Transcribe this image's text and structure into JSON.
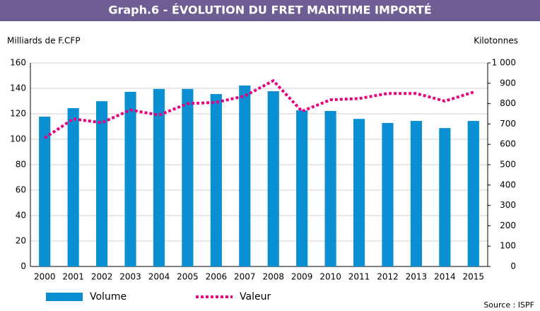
{
  "chart_data": {
    "type": "bar_line",
    "title": "Graph.6 - ÉVOLUTION DU FRET MARITIME IMPORTÉ",
    "y_label": "Milliards de F.CFP",
    "y2_label": "Kilotonnes",
    "source": "Source : ISPF",
    "categories": [
      "2000",
      "2001",
      "2002",
      "2003",
      "2004",
      "2005",
      "2006",
      "2007",
      "2008",
      "2009",
      "2010",
      "2011",
      "2012",
      "2013",
      "2014",
      "2015"
    ],
    "series": [
      {
        "name": "Volume",
        "type": "bar",
        "axis": "y2",
        "color": "#0b8fd3",
        "values": [
          736,
          778,
          812,
          858,
          872,
          872,
          847,
          889,
          861,
          767,
          764,
          725,
          705,
          715,
          680,
          715
        ]
      },
      {
        "name": "Valeur",
        "type": "line",
        "color": "#e4007f",
        "values": [
          101,
          116,
          113,
          123,
          119,
          128,
          129,
          134,
          146,
          122,
          131,
          132,
          136,
          136,
          130,
          137
        ]
      }
    ],
    "ylim": [
      0,
      160
    ],
    "yticks": [
      0,
      20,
      40,
      60,
      80,
      100,
      120,
      140,
      160
    ],
    "y2lim": [
      0,
      1000
    ],
    "y2ticks": [
      0,
      100,
      200,
      300,
      400,
      500,
      600,
      700,
      800,
      900,
      {
        "value": 1000,
        "label": "1 000"
      }
    ],
    "grid": true
  }
}
